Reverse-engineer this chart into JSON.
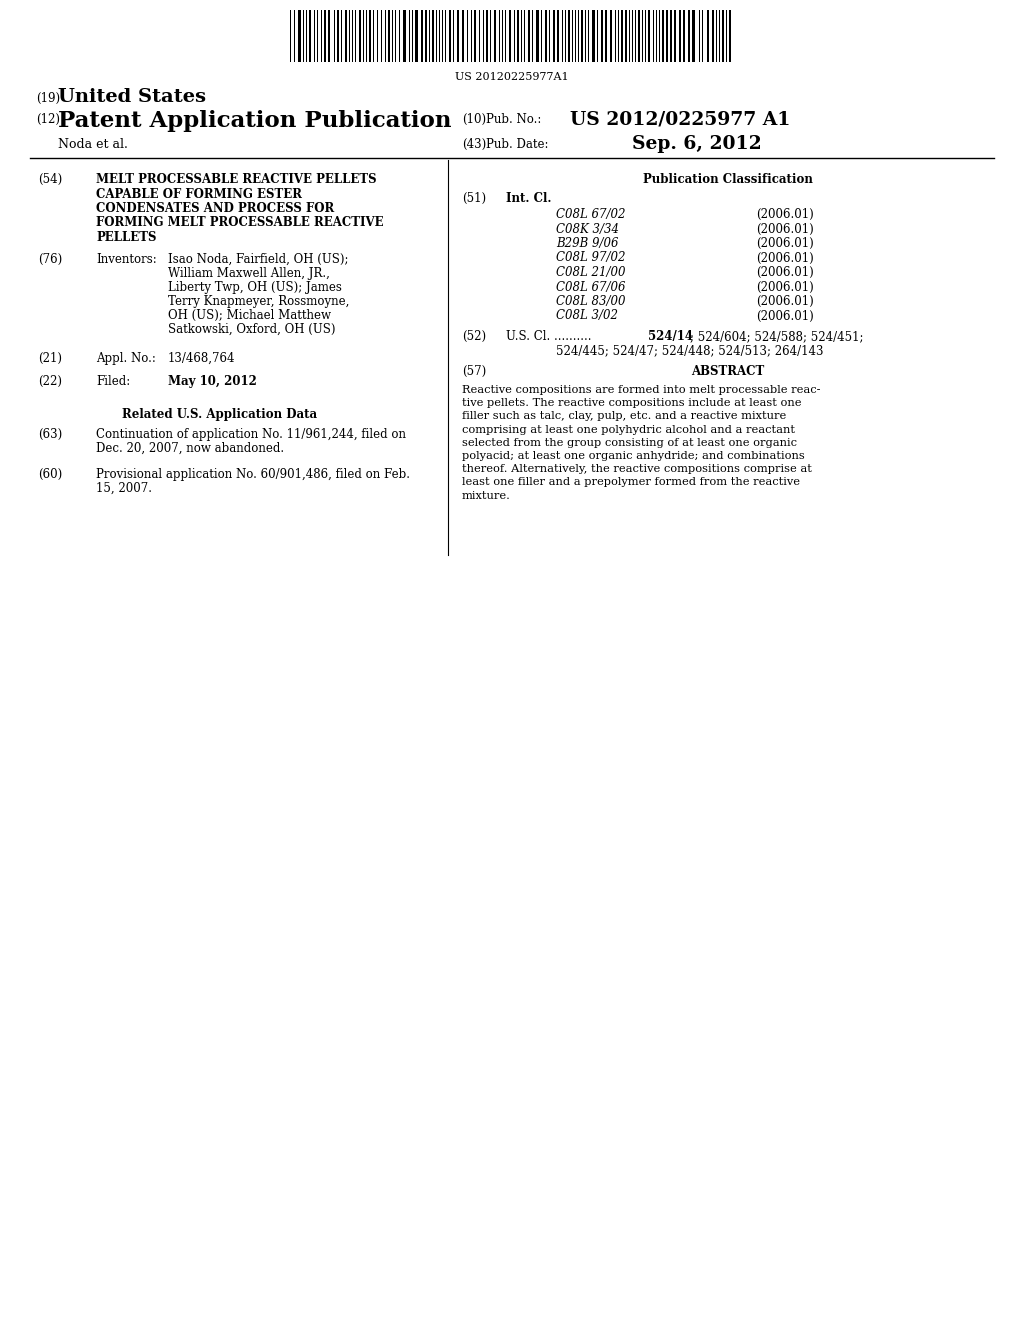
{
  "background_color": "#ffffff",
  "barcode_text": "US 20120225977A1",
  "field_54_title_lines": [
    "MELT PROCESSABLE REACTIVE PELLETS",
    "CAPABLE OF FORMING ESTER",
    "CONDENSATES AND PROCESS FOR",
    "FORMING MELT PROCESSABLE REACTIVE",
    "PELLETS"
  ],
  "field_76_value_lines": [
    "Isao Noda, Fairfield, OH (US);",
    "William Maxwell Allen, JR.,",
    "Liberty Twp, OH (US); James",
    "Terry Knapmeyer, Rossmoyne,",
    "OH (US); Michael Matthew",
    "Satkowski, Oxford, OH (US)"
  ],
  "field_21_value": "13/468,764",
  "field_22_value": "May 10, 2012",
  "related_header": "Related U.S. Application Data",
  "field_63_value": "Continuation of application No. 11/961,244, filed on\nDec. 20, 2007, now abandoned.",
  "field_60_value": "Provisional application No. 60/901,486, filed on Feb.\n15, 2007.",
  "pub_class_header": "Publication Classification",
  "int_cl_entries": [
    [
      "C08L 67/02",
      "(2006.01)"
    ],
    [
      "C08K 3/34",
      "(2006.01)"
    ],
    [
      "B29B 9/06",
      "(2006.01)"
    ],
    [
      "C08L 97/02",
      "(2006.01)"
    ],
    [
      "C08L 21/00",
      "(2006.01)"
    ],
    [
      "C08L 67/06",
      "(2006.01)"
    ],
    [
      "C08L 83/00",
      "(2006.01)"
    ],
    [
      "C08L 3/02",
      "(2006.01)"
    ]
  ],
  "field_52_value_line1": "524/14; 524/604; 524/588; 524/451;",
  "field_52_value_line2": "524/445; 524/47; 524/448; 524/513; 264/143",
  "abstract_lines": [
    "Reactive compositions are formed into melt processable reac-",
    "tive pellets. The reactive compositions include at least one",
    "filler such as talc, clay, pulp, etc. and a reactive mixture",
    "comprising at least one polyhydric alcohol and a reactant",
    "selected from the group consisting of at least one organic",
    "polyacid; at least one organic anhydride; and combinations",
    "thereof. Alternatively, the reactive compositions comprise at",
    "least one filler and a prepolymer formed from the reactive",
    "mixture."
  ]
}
